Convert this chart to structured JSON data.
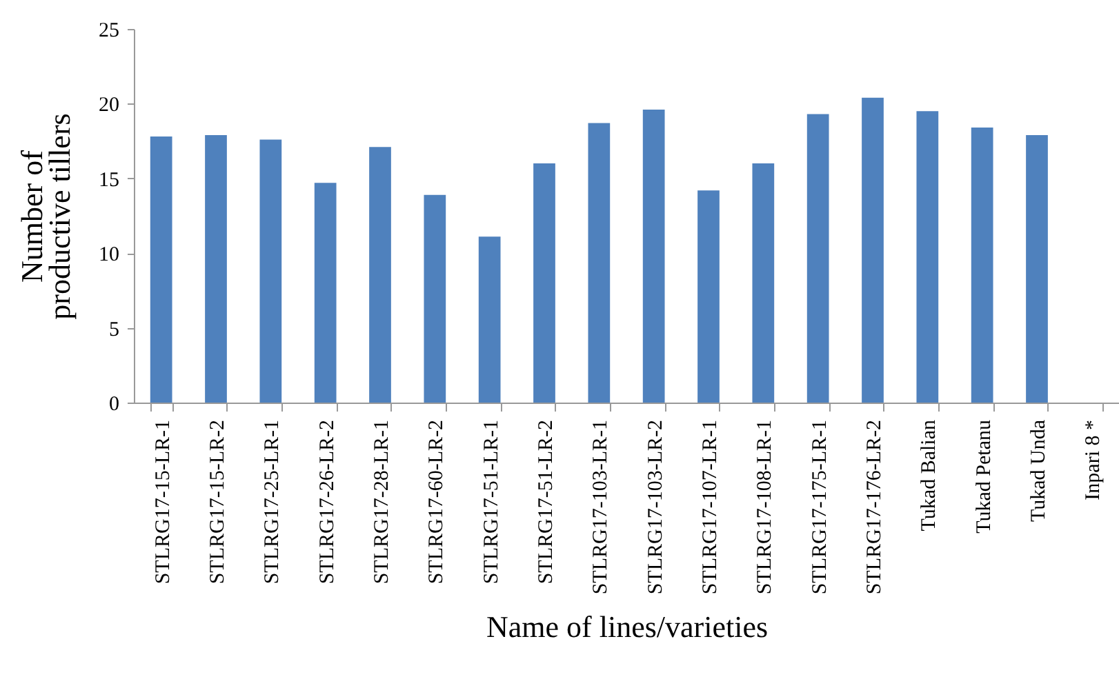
{
  "chart_data": {
    "type": "bar",
    "xlabel": "Name of lines/varieties",
    "ylabel": "Number of\nproductive tillers",
    "categories": [
      "STLRG17-15-LR-1",
      "STLRG17-15-LR-2",
      "STLRG17-25-LR-1",
      "STLRG17-26-LR-2",
      "STLRG17-28-LR-1",
      "STLRG17-60-LR-2",
      "STLRG17-51-LR-1",
      "STLRG17-51-LR-2",
      "STLRG17-103-LR-1",
      "STLRG17-103-LR-2",
      "STLRG17-107-LR-1",
      "STLRG17-108-LR-1",
      "STLRG17-175-LR-1",
      "STLRG17-176-LR-2",
      "Tukad Balian",
      "Tukad Petanu",
      "Tukad Unda",
      "Inpari 8 *"
    ],
    "values": [
      17.8,
      17.9,
      17.6,
      14.7,
      17.1,
      13.9,
      11.1,
      16.0,
      18.7,
      19.6,
      14.2,
      16.0,
      19.3,
      20.4,
      19.5,
      18.4,
      17.9,
      null
    ],
    "color": "#4f81bd",
    "ylim": [
      0,
      25
    ],
    "yticks": [
      0,
      5,
      10,
      15,
      20,
      25
    ],
    "grid": false
  }
}
